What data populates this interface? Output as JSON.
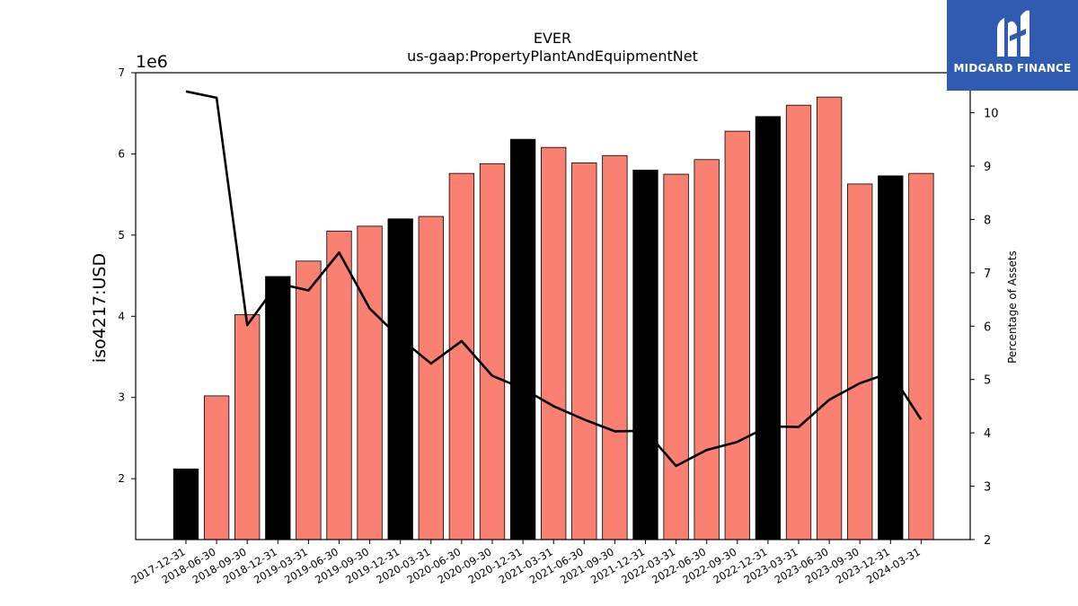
{
  "chart_data": {
    "type": "bar",
    "title": "EVER",
    "subtitle": "us-gaap:PropertyPlantAndEquipmentNet",
    "ylabel": "iso4217:USD",
    "y_offset_label": "1e6",
    "y2label": "Percentage of Assets",
    "ylim": [
      1.25,
      7.0
    ],
    "y2lim": [
      2.0,
      10.75
    ],
    "yticks": [
      2,
      3,
      4,
      5,
      6,
      7
    ],
    "y2ticks": [
      2,
      3,
      4,
      5,
      6,
      7,
      8,
      9,
      10
    ],
    "categories": [
      "2017-12-31",
      "2018-06-30",
      "2018-09-30",
      "2018-12-31",
      "2019-03-31",
      "2019-06-30",
      "2019-09-30",
      "2019-12-31",
      "2020-03-31",
      "2020-06-30",
      "2020-09-30",
      "2020-12-31",
      "2021-03-31",
      "2021-06-30",
      "2021-09-30",
      "2021-12-31",
      "2022-03-31",
      "2022-06-30",
      "2022-09-30",
      "2022-12-31",
      "2023-03-31",
      "2023-06-30",
      "2023-09-30",
      "2023-12-31",
      "2024-03-31"
    ],
    "bar_values": [
      2.12,
      3.02,
      4.02,
      4.49,
      4.68,
      5.05,
      5.11,
      5.2,
      5.23,
      5.76,
      5.88,
      6.18,
      6.08,
      5.89,
      5.98,
      5.8,
      5.75,
      5.93,
      6.28,
      6.46,
      6.6,
      6.7,
      5.63,
      5.73,
      5.76
    ],
    "bar_highlight": [
      true,
      false,
      false,
      true,
      false,
      false,
      false,
      true,
      false,
      false,
      false,
      true,
      false,
      false,
      false,
      true,
      false,
      false,
      false,
      true,
      false,
      false,
      false,
      true,
      false
    ],
    "line_values": [
      10.4,
      10.28,
      6.02,
      6.8,
      6.67,
      7.38,
      6.33,
      5.77,
      5.3,
      5.72,
      5.07,
      4.83,
      4.5,
      4.25,
      4.03,
      4.04,
      3.38,
      3.68,
      3.83,
      4.12,
      4.11,
      4.62,
      4.93,
      5.13,
      4.25
    ],
    "colors": {
      "bar": "#fa8072",
      "highlight": "#000000",
      "line": "#000000"
    }
  },
  "logo": {
    "text": "MIDGARD FINANCE"
  }
}
